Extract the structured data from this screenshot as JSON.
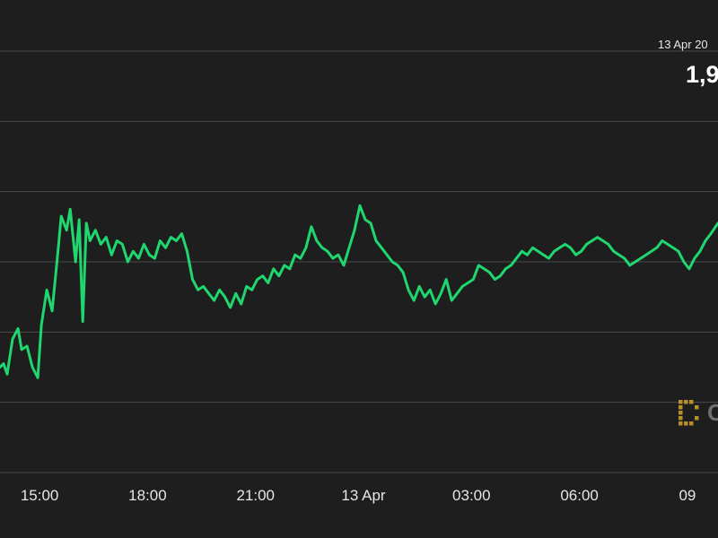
{
  "colors": {
    "background": "#1e1e1e",
    "grid": "#4a4a4a",
    "line": "#1fd66f",
    "tick_text": "#e6e6e6",
    "logo": "#b8902a"
  },
  "tooltip": {
    "date": "13 Apr 20",
    "value": "1,9"
  },
  "watermark": {
    "icon": "coindesk-logo-icon",
    "text": "C"
  },
  "chart_data": {
    "type": "line",
    "xlabel": "",
    "ylabel": "",
    "grid": true,
    "x_tick_labels": [
      "15:00",
      "18:00",
      "21:00",
      "13 Apr",
      "03:00",
      "06:00",
      "09"
    ],
    "x_tick_hours": [
      15,
      18,
      21,
      24,
      27,
      30,
      33
    ],
    "xlim_hours": [
      13.9,
      33.85
    ],
    "ylim": [
      0,
      6.6
    ],
    "gridline_levels": [
      0,
      1,
      2,
      3,
      4,
      5,
      6
    ],
    "series": [
      {
        "x_hours": [
          13.9,
          14.0,
          14.1,
          14.25,
          14.4,
          14.5,
          14.65,
          14.8,
          14.95,
          15.05,
          15.2,
          15.35,
          15.5,
          15.6,
          15.75,
          15.85,
          16.0,
          16.1,
          16.2,
          16.3,
          16.4,
          16.55,
          16.7,
          16.85,
          17.0,
          17.15,
          17.3,
          17.45,
          17.6,
          17.75,
          17.9,
          18.05,
          18.2,
          18.35,
          18.5,
          18.65,
          18.8,
          18.95,
          19.1,
          19.25,
          19.4,
          19.55,
          19.7,
          19.85,
          20.0,
          20.15,
          20.3,
          20.45,
          20.6,
          20.75,
          20.9,
          21.05,
          21.2,
          21.35,
          21.5,
          21.65,
          21.8,
          21.95,
          22.1,
          22.25,
          22.4,
          22.55,
          22.7,
          22.85,
          23.0,
          23.15,
          23.3,
          23.45,
          23.6,
          23.75,
          23.9,
          24.05,
          24.2,
          24.35,
          24.5,
          24.65,
          24.8,
          24.95,
          25.1,
          25.25,
          25.4,
          25.55,
          25.7,
          25.85,
          26.0,
          26.15,
          26.3,
          26.45,
          26.6,
          26.75,
          26.9,
          27.05,
          27.2,
          27.35,
          27.5,
          27.65,
          27.8,
          27.95,
          28.1,
          28.25,
          28.4,
          28.55,
          28.7,
          28.85,
          29.0,
          29.15,
          29.3,
          29.45,
          29.6,
          29.75,
          29.9,
          30.05,
          30.2,
          30.35,
          30.5,
          30.65,
          30.8,
          30.95,
          31.1,
          31.25,
          31.4,
          31.55,
          31.7,
          31.85,
          32.0,
          32.15,
          32.3,
          32.45,
          32.6,
          32.75,
          32.9,
          33.05,
          33.2,
          33.35,
          33.5,
          33.65,
          33.85
        ],
        "y_values": [
          1.5,
          1.55,
          1.4,
          1.9,
          2.05,
          1.75,
          1.8,
          1.5,
          1.35,
          2.1,
          2.6,
          2.3,
          3.1,
          3.65,
          3.45,
          3.75,
          3.0,
          3.6,
          2.15,
          3.55,
          3.3,
          3.45,
          3.25,
          3.35,
          3.1,
          3.3,
          3.25,
          3.0,
          3.15,
          3.05,
          3.25,
          3.1,
          3.05,
          3.3,
          3.2,
          3.35,
          3.3,
          3.4,
          3.15,
          2.75,
          2.6,
          2.65,
          2.55,
          2.45,
          2.6,
          2.5,
          2.35,
          2.55,
          2.4,
          2.65,
          2.6,
          2.75,
          2.8,
          2.7,
          2.9,
          2.8,
          2.95,
          2.9,
          3.1,
          3.05,
          3.2,
          3.5,
          3.3,
          3.2,
          3.15,
          3.05,
          3.1,
          2.95,
          3.2,
          3.45,
          3.8,
          3.6,
          3.55,
          3.3,
          3.2,
          3.1,
          3.0,
          2.95,
          2.85,
          2.6,
          2.45,
          2.65,
          2.5,
          2.6,
          2.4,
          2.55,
          2.75,
          2.45,
          2.55,
          2.65,
          2.7,
          2.75,
          2.95,
          2.9,
          2.85,
          2.75,
          2.8,
          2.9,
          2.95,
          3.05,
          3.15,
          3.1,
          3.2,
          3.15,
          3.1,
          3.05,
          3.15,
          3.2,
          3.25,
          3.2,
          3.1,
          3.15,
          3.25,
          3.3,
          3.35,
          3.3,
          3.25,
          3.15,
          3.1,
          3.05,
          2.95,
          3.0,
          3.05,
          3.1,
          3.15,
          3.2,
          3.3,
          3.25,
          3.2,
          3.15,
          3.0,
          2.9,
          3.05,
          3.15,
          3.3,
          3.4,
          3.55
        ]
      }
    ]
  }
}
